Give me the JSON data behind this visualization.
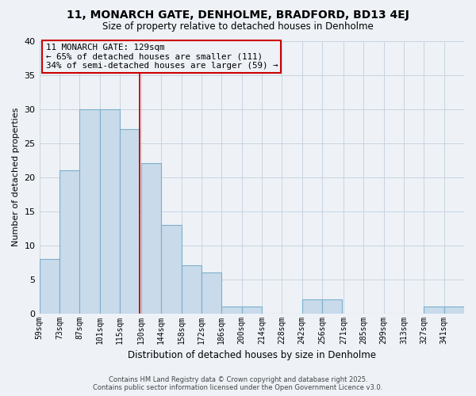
{
  "title": "11, MONARCH GATE, DENHOLME, BRADFORD, BD13 4EJ",
  "subtitle": "Size of property relative to detached houses in Denholme",
  "xlabel": "Distribution of detached houses by size in Denholme",
  "ylabel": "Number of detached properties",
  "bin_labels": [
    "59sqm",
    "73sqm",
    "87sqm",
    "101sqm",
    "115sqm",
    "130sqm",
    "144sqm",
    "158sqm",
    "172sqm",
    "186sqm",
    "200sqm",
    "214sqm",
    "228sqm",
    "242sqm",
    "256sqm",
    "271sqm",
    "285sqm",
    "299sqm",
    "313sqm",
    "327sqm",
    "341sqm"
  ],
  "bin_edges": [
    59,
    73,
    87,
    101,
    115,
    130,
    144,
    158,
    172,
    186,
    200,
    214,
    228,
    242,
    256,
    271,
    285,
    299,
    313,
    327,
    341,
    355
  ],
  "counts": [
    8,
    21,
    30,
    30,
    27,
    22,
    13,
    7,
    6,
    1,
    1,
    0,
    0,
    2,
    2,
    0,
    0,
    0,
    0,
    1,
    1
  ],
  "bar_facecolor": "#c9daea",
  "bar_edgecolor": "#7ab0cc",
  "grid_color": "#c8d4df",
  "bg_color": "#eef2f7",
  "property_line_x": 129,
  "property_line_color": "#cc0000",
  "annotation_title": "11 MONARCH GATE: 129sqm",
  "annotation_line1": "← 65% of detached houses are smaller (111)",
  "annotation_line2": "34% of semi-detached houses are larger (59) →",
  "annotation_box_color": "#cc0000",
  "ylim": [
    0,
    40
  ],
  "yticks": [
    0,
    5,
    10,
    15,
    20,
    25,
    30,
    35,
    40
  ],
  "footer1": "Contains HM Land Registry data © Crown copyright and database right 2025.",
  "footer2": "Contains public sector information licensed under the Open Government Licence v3.0."
}
